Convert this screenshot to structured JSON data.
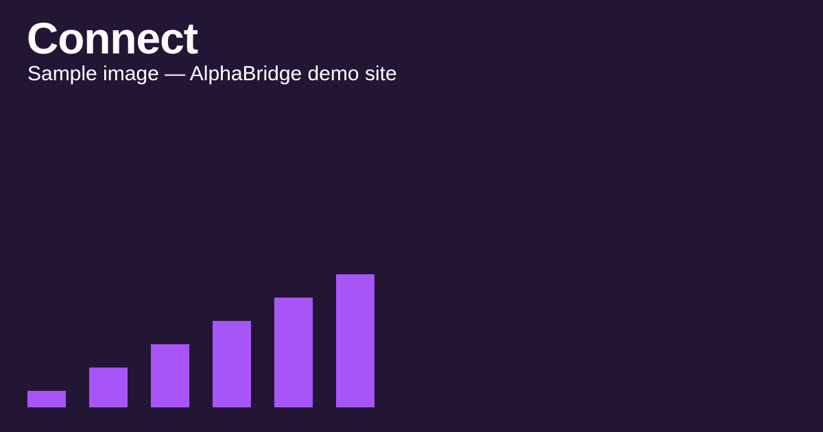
{
  "header": {
    "title": "Connect",
    "subtitle": "Sample image — AlphaBridge demo site"
  }
}
